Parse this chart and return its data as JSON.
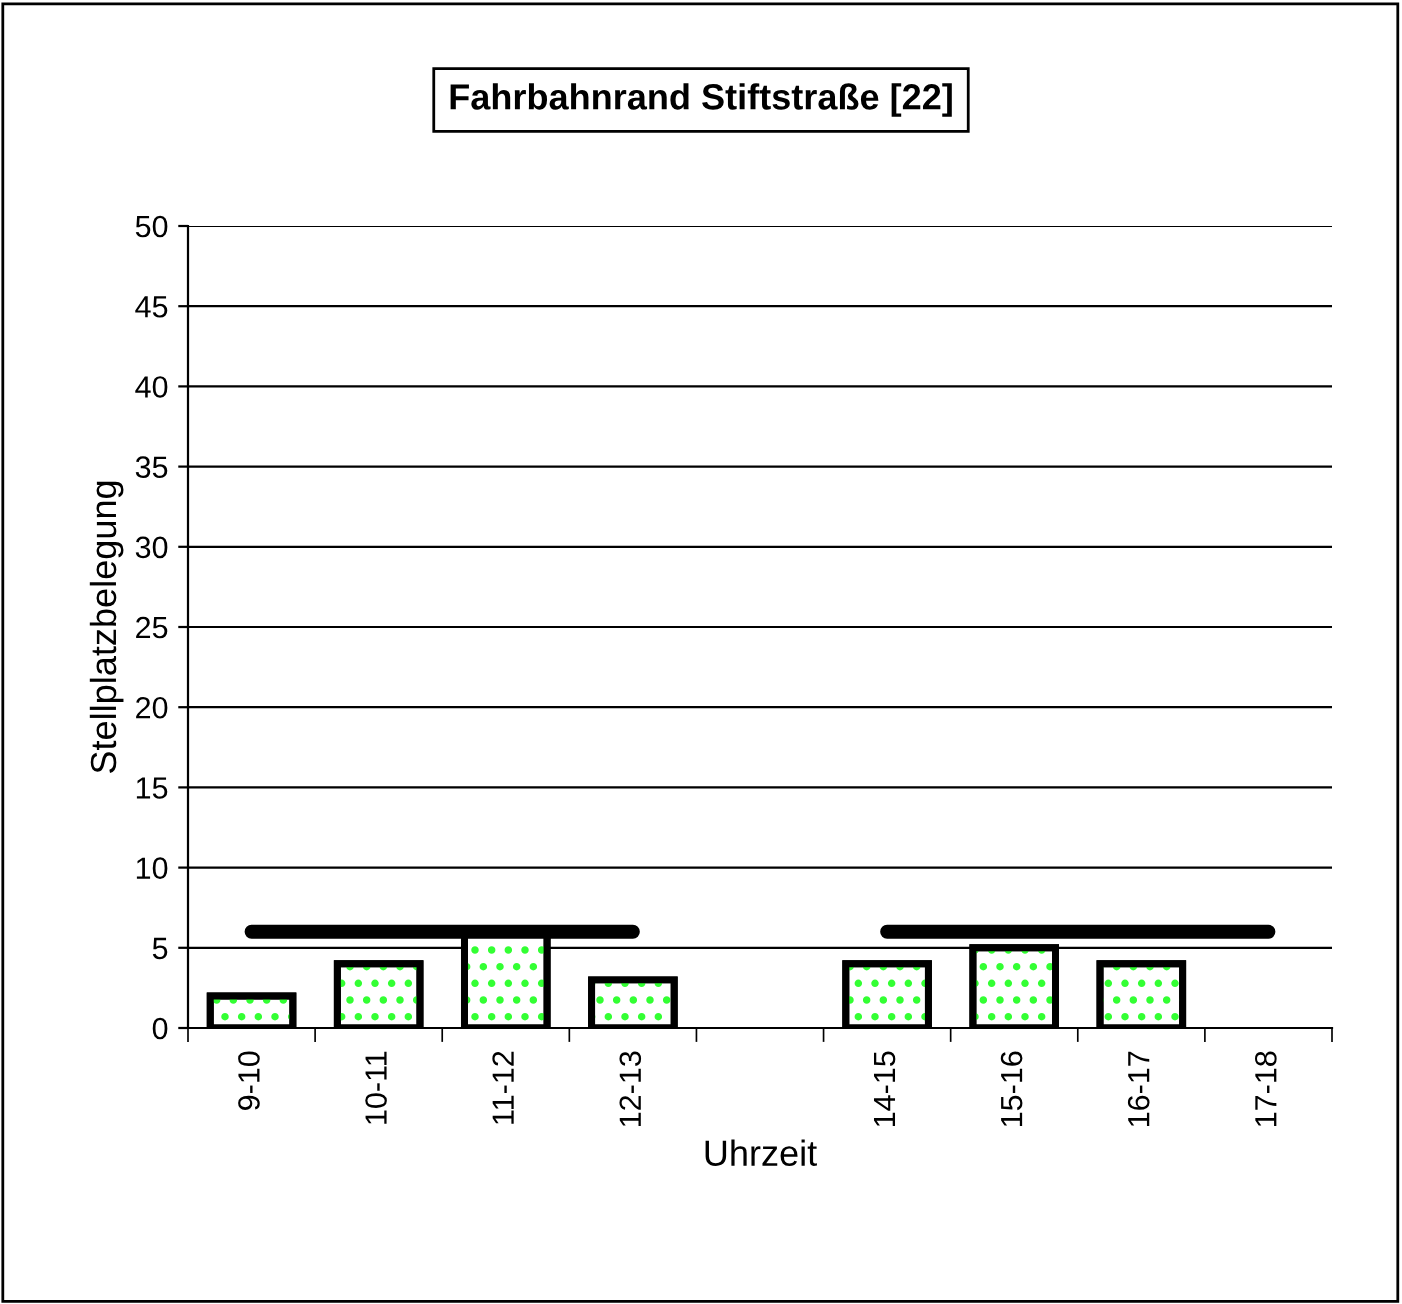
{
  "chart_data": {
    "type": "bar",
    "title": "Fahrbahnrand Stiftstraße [22]",
    "xlabel": "Uhrzeit",
    "ylabel": "Stellplatzbelegung",
    "categories": [
      "9-10",
      "10-11",
      "11-12",
      "12-13",
      null,
      "14-15",
      "15-16",
      "16-17",
      "17-18"
    ],
    "series": [
      {
        "color": "#33ff33",
        "values": [
          2,
          4,
          6,
          3,
          null,
          4,
          5,
          4,
          null
        ]
      },
      {
        "type": "line",
        "color": "#000000",
        "values": [
          6,
          6,
          6,
          6,
          null,
          6,
          6,
          6,
          6
        ]
      }
    ],
    "ylim": [
      0,
      50
    ],
    "yticks": [
      0,
      5,
      10,
      15,
      20,
      25,
      30,
      35,
      40,
      45,
      50
    ],
    "grid": "y",
    "marker": "none",
    "line_style": "solid"
  }
}
